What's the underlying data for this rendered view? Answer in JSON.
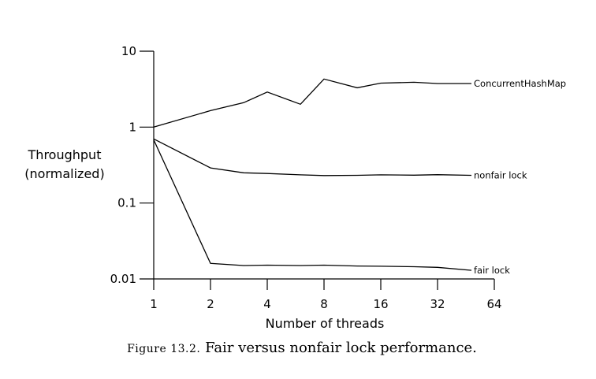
{
  "chart_data": {
    "type": "line",
    "x": [
      1,
      2,
      3,
      4,
      6,
      8,
      12,
      16,
      24,
      32,
      48
    ],
    "x_scale": "log2",
    "x_ticks": [
      1,
      2,
      4,
      8,
      16,
      32,
      64
    ],
    "x_tick_labels": [
      "1",
      "2",
      "4",
      "8",
      "16",
      "32",
      "64"
    ],
    "y_scale": "log10",
    "y_ticks": [
      10,
      1,
      0.1,
      0.01
    ],
    "y_tick_labels": [
      "10",
      "1",
      "0.1",
      "0.01"
    ],
    "ylim": [
      0.01,
      10
    ],
    "xlabel": "Number of threads",
    "ylabel_lines": [
      "Throughput",
      "(normalized)"
    ],
    "series": [
      {
        "name": "ConcurrentHashMap",
        "values": [
          1.0,
          1.65,
          2.1,
          2.9,
          2.0,
          4.3,
          3.3,
          3.8,
          3.9,
          3.75,
          3.75
        ]
      },
      {
        "name": "nonfair lock",
        "values": [
          0.7,
          0.29,
          0.25,
          0.245,
          0.235,
          0.23,
          0.232,
          0.235,
          0.233,
          0.236,
          0.232
        ]
      },
      {
        "name": "fair lock",
        "values": [
          0.68,
          0.016,
          0.015,
          0.0152,
          0.015,
          0.0152,
          0.0148,
          0.0147,
          0.0145,
          0.0142,
          0.013
        ]
      }
    ],
    "grid": false,
    "legend": "inline labels at right end of each line",
    "caption_prefix": "Figure 13.2.",
    "caption_text": "Fair versus nonfair lock performance."
  }
}
